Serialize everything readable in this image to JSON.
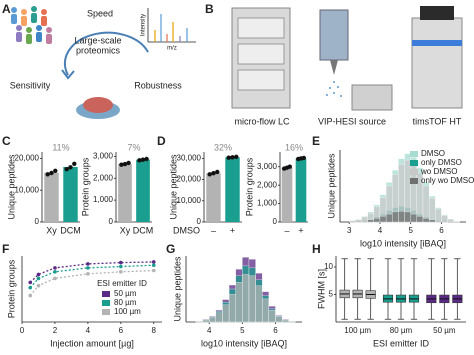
{
  "panel_labels": [
    "A",
    "B",
    "C",
    "D",
    "E",
    "F",
    "G",
    "H"
  ],
  "diagram_a": {
    "center": [
      "Large-scale",
      "proteomics"
    ],
    "speed": "Speed",
    "sensitivity": "Sensitivity",
    "robustness": "Robustness",
    "spectrum_y": "Intensity",
    "spectrum_x": "m/z"
  },
  "diagram_b": {
    "instruments": [
      "micro-flow LC",
      "VIP-HESI source",
      "timsTOF HT"
    ]
  },
  "chart_data": [
    {
      "type": "bar",
      "ylabel": "Unique peptides",
      "categories": [
        "Xy",
        "DCM"
      ],
      "values": [
        15500,
        17300
      ],
      "points": [
        [
          15000,
          15400,
          16100
        ],
        [
          16600,
          17200,
          18300
        ]
      ],
      "colors": [
        "#b3b3b3",
        "#1a9e8f"
      ],
      "annotation": "11%",
      "ylim": [
        0,
        22000
      ],
      "yticks": [
        0,
        {
          "value": 10000,
          "label": "10,000"
        },
        {
          "value": 20000,
          "label": "20,000"
        }
      ]
    },
    {
      "type": "bar",
      "ylabel": "Protein groups",
      "categories": [
        "Xy",
        "DCM"
      ],
      "values": [
        2650,
        2850
      ],
      "points": [
        [
          2620,
          2650,
          2700
        ],
        [
          2820,
          2850,
          2880
        ]
      ],
      "colors": [
        "#b3b3b3",
        "#1a9e8f"
      ],
      "annotation": "7%",
      "ylim": [
        0,
        3200
      ],
      "yticks": [
        0,
        {
          "value": 1000,
          "label": "1,000"
        },
        {
          "value": 2000,
          "label": "2,000"
        },
        {
          "value": 3000,
          "label": "3,000"
        }
      ]
    },
    {
      "type": "bar",
      "ylabel": "Unique peptides",
      "xlabel": "DMSO",
      "categories": [
        "–",
        "+"
      ],
      "values": [
        23000,
        30500
      ],
      "points": [
        [
          22500,
          23000,
          23600
        ],
        [
          30300,
          30500,
          30700
        ]
      ],
      "colors": [
        "#b3b3b3",
        "#1a9e8f"
      ],
      "annotation": "32%",
      "ylim": [
        0,
        33000
      ],
      "yticks": [
        0,
        {
          "value": 10000,
          "label": "10,000"
        },
        {
          "value": 20000,
          "label": "20,000"
        },
        {
          "value": 30000,
          "label": "30,000"
        }
      ]
    },
    {
      "type": "bar",
      "ylabel": "Protein groups",
      "categories": [
        "–",
        "+"
      ],
      "values": [
        2950,
        3450
      ],
      "points": [
        [
          2900,
          2950,
          3000
        ],
        [
          3420,
          3450,
          3480
        ]
      ],
      "colors": [
        "#b3b3b3",
        "#1a9e8f"
      ],
      "annotation": "16%",
      "ylim": [
        0,
        3800
      ],
      "yticks": [
        0,
        {
          "value": 1000,
          "label": "1,000"
        },
        {
          "value": 2000,
          "label": "2,000"
        },
        {
          "value": 3000,
          "label": "3,000"
        }
      ]
    },
    {
      "type": "histogram",
      "ylabel": "Unique peptides",
      "xlabel": "log10 intensity [iBAQ]",
      "xlim": [
        2.7,
        6.8
      ],
      "xticks": [
        3,
        4,
        5,
        6
      ],
      "ylim": [
        0,
        100
      ],
      "bins": [
        3.0,
        3.2,
        3.4,
        3.6,
        3.8,
        4.0,
        4.2,
        4.4,
        4.6,
        4.8,
        5.0,
        5.2,
        5.4,
        5.6,
        5.8,
        6.0,
        6.2,
        6.4,
        6.6
      ],
      "series": [
        {
          "name": "DMSO",
          "color": "#a8dcd1",
          "values": [
            2,
            4,
            8,
            14,
            24,
            38,
            55,
            72,
            88,
            95,
            90,
            75,
            55,
            36,
            20,
            10,
            4,
            1
          ]
        },
        {
          "name": "only DMSO",
          "color": "#1a9e8f",
          "values": [
            1,
            1,
            2,
            4,
            7,
            11,
            16,
            20,
            22,
            20,
            16,
            11,
            7,
            4,
            2,
            1,
            0,
            0
          ]
        },
        {
          "name": "wo DMSO",
          "color": "#c8c8c8",
          "values": [
            2,
            3,
            7,
            12,
            21,
            34,
            50,
            66,
            80,
            86,
            82,
            68,
            50,
            33,
            18,
            9,
            4,
            1
          ]
        },
        {
          "name": "only wo DMSO",
          "color": "#707070",
          "values": [
            0,
            1,
            1,
            3,
            5,
            8,
            11,
            14,
            15,
            14,
            11,
            8,
            5,
            3,
            1,
            1,
            0,
            0
          ]
        }
      ]
    },
    {
      "type": "line",
      "ylabel": "Protein groups",
      "xlabel": "Injection amount [µg]",
      "legend_title": "ESI emitter ID",
      "x": [
        0.5,
        1,
        2,
        4,
        6,
        8
      ],
      "xlim": [
        0,
        8.5
      ],
      "xticks": [
        0,
        2,
        4,
        6,
        8
      ],
      "ylim": [
        0,
        100
      ],
      "series": [
        {
          "name": "50 µm",
          "color": "#5b2a86",
          "values": [
            60,
            72,
            82,
            88,
            90,
            91
          ]
        },
        {
          "name": "80 µm",
          "color": "#1a9e8f",
          "values": [
            52,
            66,
            76,
            82,
            84,
            86
          ]
        },
        {
          "name": "100 µm",
          "color": "#b3b3b3",
          "values": [
            40,
            55,
            66,
            73,
            76,
            78
          ]
        }
      ]
    },
    {
      "type": "histogram",
      "ylabel": "Unique peptides",
      "xlabel": "log10 intensity [iBAQ]",
      "xlim": [
        3.3,
        6.8
      ],
      "xticks": [
        4,
        5,
        6
      ],
      "ylim": [
        0,
        100
      ],
      "bins": [
        3.6,
        3.8,
        4.0,
        4.2,
        4.4,
        4.6,
        4.8,
        5.0,
        5.2,
        5.4,
        5.6,
        5.8,
        6.0,
        6.2,
        6.4,
        6.6
      ],
      "series": [
        {
          "color": "#5b2a86",
          "values": [
            1,
            4,
            9,
            18,
            34,
            56,
            80,
            98,
            95,
            74,
            46,
            24,
            10,
            4,
            1
          ]
        },
        {
          "color": "#1a9e8f",
          "values": [
            1,
            3,
            8,
            16,
            30,
            50,
            70,
            85,
            82,
            64,
            40,
            20,
            9,
            3,
            1
          ]
        },
        {
          "color": "#b3b3b3",
          "values": [
            1,
            3,
            7,
            14,
            26,
            42,
            60,
            72,
            70,
            55,
            35,
            18,
            8,
            3,
            1
          ]
        }
      ]
    },
    {
      "type": "box",
      "ylabel": "FWHM [s]",
      "xlabel": "ESI emitter ID",
      "categories": [
        "100 µm",
        "80 µm",
        "50 µm"
      ],
      "ylim": [
        0,
        12
      ],
      "yticks": [
        5,
        10
      ],
      "groups": [
        {
          "color": "#b3b3b3",
          "boxes": [
            {
              "min": 0.5,
              "q1": 4.4,
              "median": 5.1,
              "q3": 5.8,
              "max": 11.5
            },
            {
              "min": 0.5,
              "q1": 4.4,
              "median": 5.1,
              "q3": 5.8,
              "max": 11.5
            },
            {
              "min": 0.5,
              "q1": 4.3,
              "median": 5.0,
              "q3": 5.7,
              "max": 11.5
            }
          ]
        },
        {
          "color": "#1a9e8f",
          "boxes": [
            {
              "min": 0.5,
              "q1": 3.6,
              "median": 4.2,
              "q3": 4.9,
              "max": 11.5
            },
            {
              "min": 0.5,
              "q1": 3.6,
              "median": 4.2,
              "q3": 4.9,
              "max": 11.5
            },
            {
              "min": 0.5,
              "q1": 3.6,
              "median": 4.2,
              "q3": 4.9,
              "max": 11.5
            }
          ]
        },
        {
          "color": "#5b2a86",
          "boxes": [
            {
              "min": 0.5,
              "q1": 3.5,
              "median": 4.2,
              "q3": 4.9,
              "max": 11.5
            },
            {
              "min": 0.5,
              "q1": 3.5,
              "median": 4.2,
              "q3": 4.9,
              "max": 11.5
            },
            {
              "min": 0.5,
              "q1": 3.5,
              "median": 4.2,
              "q3": 4.9,
              "max": 11.5
            }
          ]
        }
      ]
    }
  ]
}
